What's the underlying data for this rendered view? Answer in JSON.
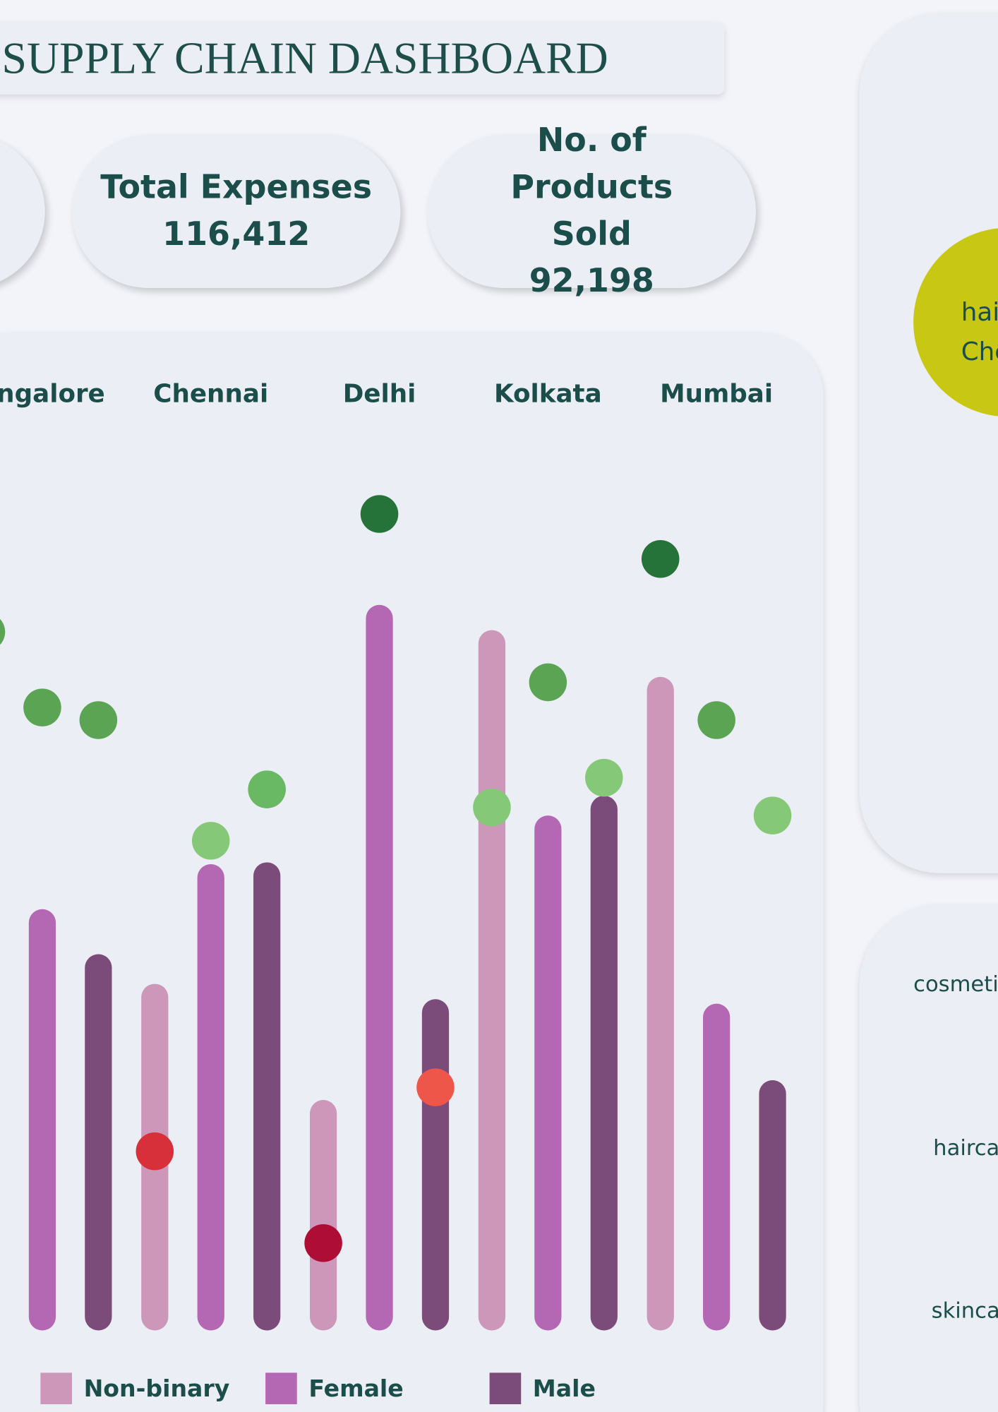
{
  "header": {
    "title": "SUPPLY CHAIN DASHBOARD"
  },
  "kpis": [
    {
      "label": "Total Expenses",
      "value": "116,412"
    },
    {
      "label": "No. of Products Sold",
      "value": "92,198"
    }
  ],
  "side": {
    "bubble_lines": [
      "hai",
      "Che"
    ],
    "categories": [
      "cosmeti",
      "hairca",
      "skinca"
    ]
  },
  "chart_data": {
    "type": "bar",
    "categories": [
      "angalore",
      "Chennai",
      "Delhi",
      "Kolkata",
      "Mumbai"
    ],
    "ylim": [
      0,
      1000
    ],
    "series": [
      {
        "name": "Non-binary",
        "color": "#cc97b8",
        "values": [
          null,
          385,
          256,
          778,
          726
        ],
        "marker_values": [
          776,
          199,
          97,
          581,
          857
        ],
        "marker_colors": [
          "#5aa454",
          "#d7303a",
          "#ae0e36",
          "#85c978",
          "#267339"
        ]
      },
      {
        "name": "Female",
        "color": "#b468b3",
        "values": [
          468,
          518,
          806,
          572,
          363
        ],
        "marker_values": [
          692,
          544,
          907,
          720,
          678
        ],
        "marker_colors": [
          "#5aa454",
          "#85c978",
          "#267339",
          "#5aa454",
          "#5aa454"
        ]
      },
      {
        "name": "Male",
        "color": "#7b4b79",
        "values": [
          418,
          520,
          368,
          594,
          278
        ],
        "marker_values": [
          678,
          601,
          270,
          614,
          572
        ],
        "marker_colors": [
          "#5aa454",
          "#69b863",
          "#ee5649",
          "#85c978",
          "#85c978"
        ]
      }
    ]
  }
}
